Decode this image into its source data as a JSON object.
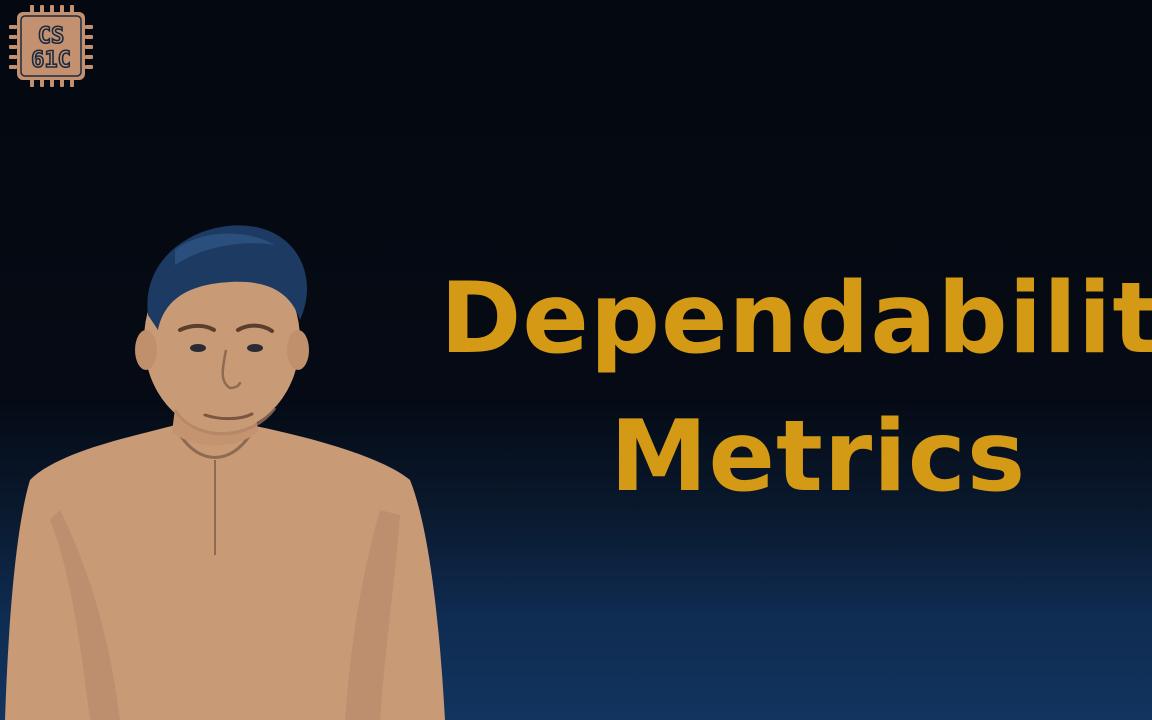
{
  "logo": {
    "text_line1": "CS",
    "text_line2": "61C",
    "icon": "chip-logo-icon"
  },
  "title": {
    "line1": "Dependability",
    "line2": "Metrics"
  },
  "presenter": {
    "icon": "presenter-figure"
  },
  "colors": {
    "title": "#d49a16",
    "logo_fill": "#c49170",
    "skin": "#c99a74",
    "hair": "#1d3a63",
    "background_top": "#040810",
    "background_bottom": "#12345e"
  }
}
